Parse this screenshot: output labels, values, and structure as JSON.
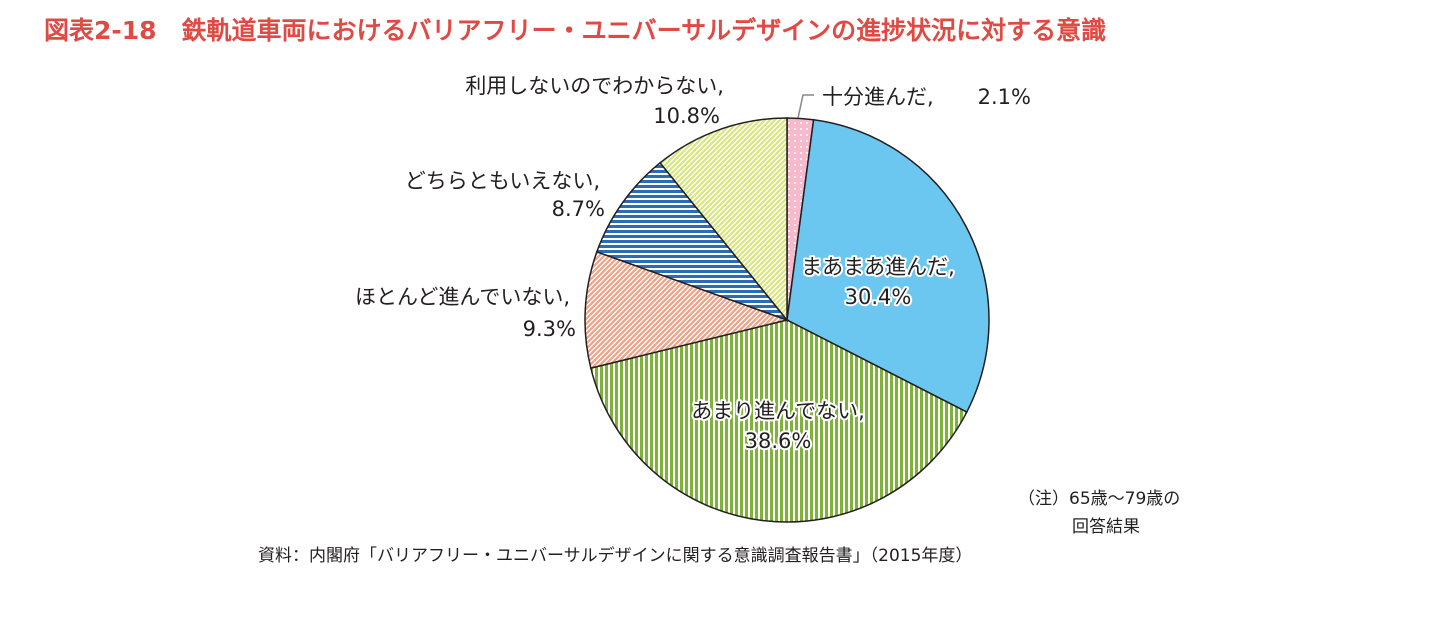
{
  "chart_data": {
    "type": "pie",
    "title": "図表2-18　鉄軌道車両におけるバリアフリー・ユニバーサルデザインの進捗状況に対する意識",
    "categories": [
      "十分進んだ,",
      "まあまあ進んだ,",
      "あまり進んでない,",
      "ほとんど進んでいない,",
      "どちらともいえない,",
      "利用しないのでわからない,"
    ],
    "values": [
      2.1,
      30.4,
      38.6,
      9.3,
      8.7,
      10.8
    ],
    "value_labels": [
      "2.1%",
      "30.4%",
      "38.6%",
      "9.3%",
      "8.7%",
      "10.8%"
    ],
    "colors": [
      "#f7b9cc",
      "#6cc7f0",
      "#7fb23a",
      "#f3a184",
      "#2a6cb5",
      "#d7e67f"
    ],
    "patterns": [
      "dots",
      "none",
      "vertical",
      "diagonal",
      "horizontal",
      "diagonal"
    ],
    "note": [
      "（注）65歳～79歳の",
      "回答結果"
    ],
    "source": "資料：内閣府「バリアフリー・ユニバーサルデザインに関する意識調査報告書」（2015年度）"
  }
}
